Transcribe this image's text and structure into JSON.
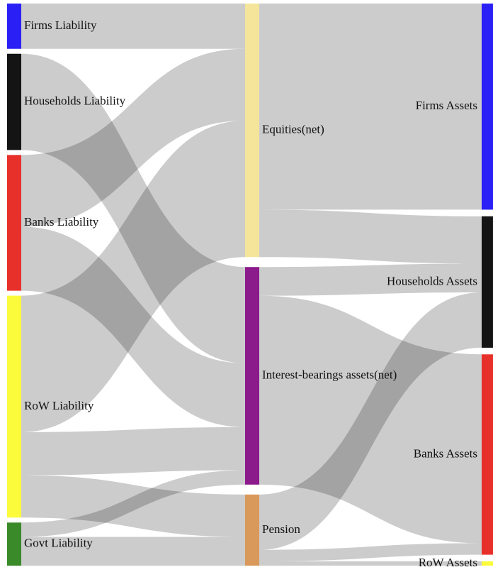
{
  "chart_data": {
    "type": "sankey",
    "nodes": [
      {
        "name": "Firms Liability",
        "color": "#2a1ff5"
      },
      {
        "name": "Households Liability",
        "color": "#141414"
      },
      {
        "name": "Banks Liability",
        "color": "#e8302a"
      },
      {
        "name": "RoW Liability",
        "color": "#fbfb3c"
      },
      {
        "name": "Govt Liability",
        "color": "#3a8a2a"
      },
      {
        "name": "Equities(net)",
        "color": "#f5e59a"
      },
      {
        "name": "Interest-bearings assets(net)",
        "color": "#8b1a8b"
      },
      {
        "name": "Pension",
        "color": "#d9995a"
      },
      {
        "name": "Firms Assets",
        "color": "#2a1ff5"
      },
      {
        "name": "Households Assets",
        "color": "#141414"
      },
      {
        "name": "Banks Assets",
        "color": "#e8302a"
      },
      {
        "name": "RoW Assets",
        "color": "#fbfb3c"
      }
    ],
    "links": [
      {
        "source": "Firms Liability",
        "target": "Equities(net)",
        "value": 63
      },
      {
        "source": "Households Liability",
        "target": "Interest-bearings assets(net)",
        "value": 134
      },
      {
        "source": "Banks Liability",
        "target": "Equities(net)",
        "value": 100
      },
      {
        "source": "Banks Liability",
        "target": "Interest-bearings assets(net)",
        "value": 89
      },
      {
        "source": "RoW Liability",
        "target": "Equities(net)",
        "value": 190
      },
      {
        "source": "RoW Liability",
        "target": "Interest-bearings assets(net)",
        "value": 60
      },
      {
        "source": "RoW Liability",
        "target": "Pension",
        "value": 59
      },
      {
        "source": "Govt Liability",
        "target": "Interest-bearings assets(net)",
        "value": 20
      },
      {
        "source": "Govt Liability",
        "target": "Pension",
        "value": 40
      },
      {
        "source": "Equities(net)",
        "target": "Firms Assets",
        "value": 287
      },
      {
        "source": "Equities(net)",
        "target": "Households Assets",
        "value": 66
      },
      {
        "source": "Interest-bearings assets(net)",
        "target": "Households Assets",
        "value": 40
      },
      {
        "source": "Interest-bearings assets(net)",
        "target": "Banks Assets",
        "value": 263
      },
      {
        "source": "Pension",
        "target": "Households Assets",
        "value": 77
      },
      {
        "source": "Pension",
        "target": "Banks Assets",
        "value": 16
      },
      {
        "source": "Pension",
        "target": "RoW Assets",
        "value": 6
      }
    ]
  }
}
